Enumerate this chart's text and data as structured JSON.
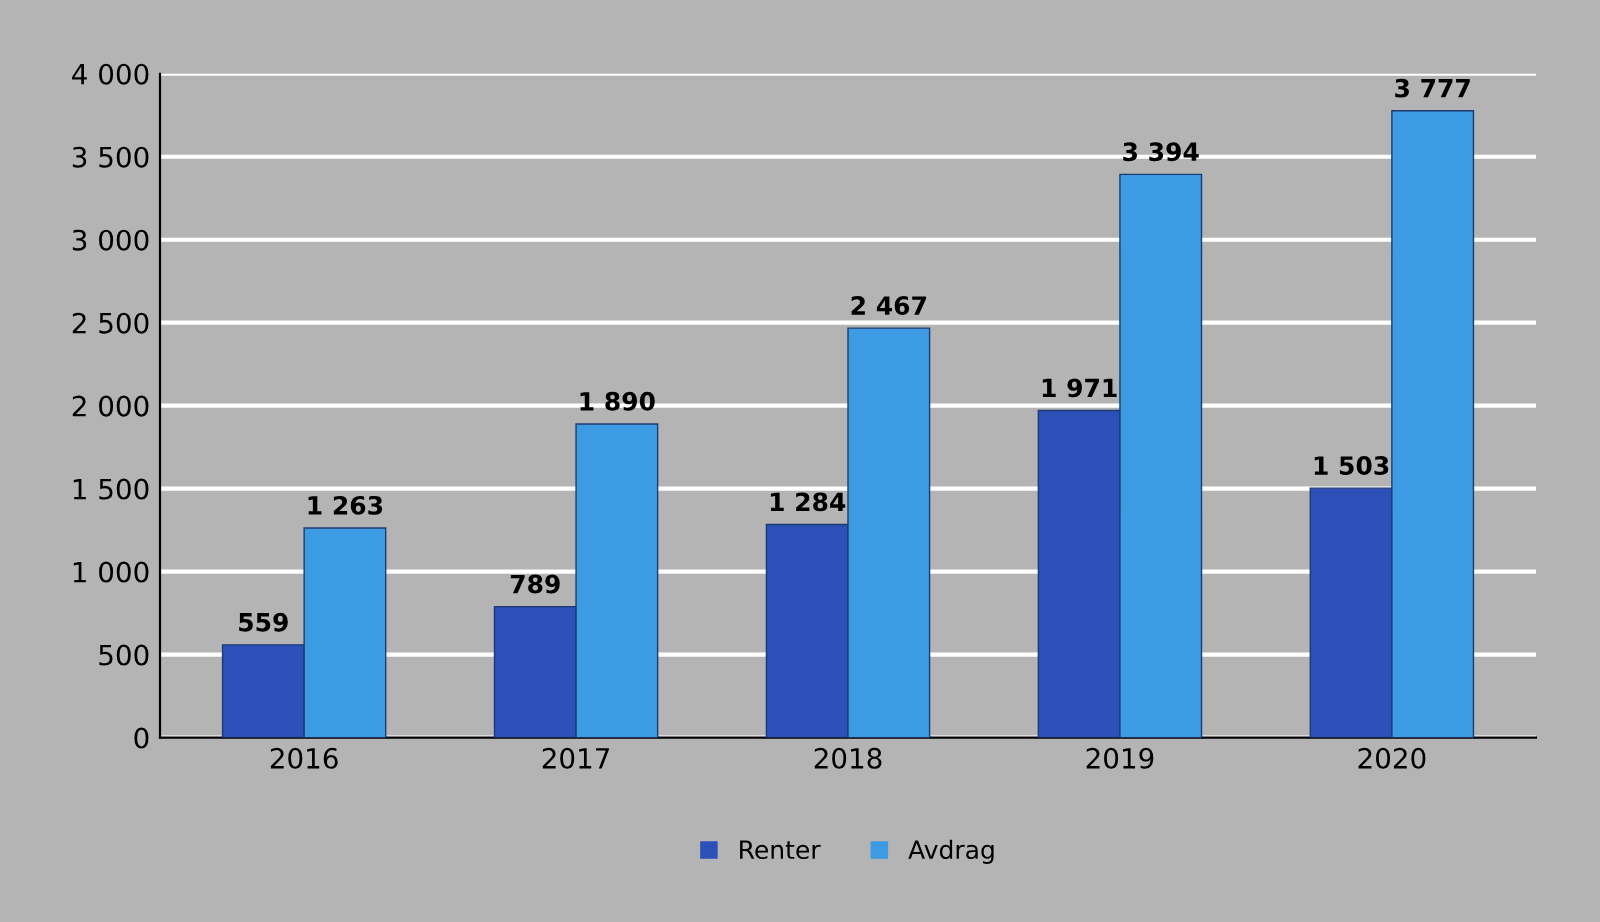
{
  "chart_data": {
    "type": "bar",
    "categories": [
      "2016",
      "2017",
      "2018",
      "2019",
      "2020"
    ],
    "series": [
      {
        "name": "Renter",
        "color": "#2d4fb8",
        "values": [
          559,
          789,
          1284,
          1971,
          1503
        ],
        "value_labels": [
          "559",
          "789",
          "1 284",
          "1 971",
          "1 503"
        ]
      },
      {
        "name": "Avdrag",
        "color": "#3d9be3",
        "values": [
          1263,
          1890,
          2467,
          3394,
          3777
        ],
        "value_labels": [
          "1 263",
          "1 890",
          "2 467",
          "3 394",
          "3 777"
        ]
      }
    ],
    "ylim": [
      0,
      4000
    ],
    "yticks": [
      0,
      500,
      {
        "value": 1000,
        "label": "1 000"
      },
      {
        "value": 1500,
        "label": "1 500"
      },
      {
        "value": 2000,
        "label": "2 000"
      },
      {
        "value": 2500,
        "label": "2 500"
      },
      {
        "value": 3000,
        "label": "3 000"
      },
      {
        "value": 3500,
        "label": "3 500"
      },
      {
        "value": 4000,
        "label": "4 000"
      }
    ],
    "grid": "y",
    "legend": "bottom"
  }
}
